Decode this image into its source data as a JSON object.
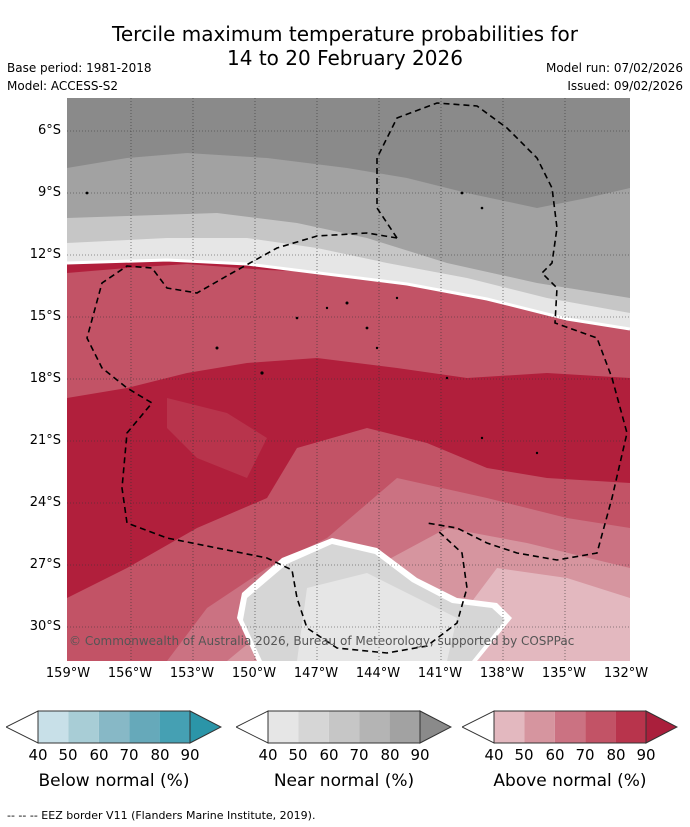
{
  "title_line1": "Tercile maximum temperature probabilities for",
  "title_line2": "14 to 20 February 2026",
  "base_period": "Base period: 1981-2018",
  "model": "Model: ACCESS-S2",
  "model_run": "Model run: 07/02/2026",
  "issued": "Issued: 09/02/2026",
  "y_ticks": [
    "6°S",
    "9°S",
    "12°S",
    "15°S",
    "18°S",
    "21°S",
    "24°S",
    "27°S",
    "30°S"
  ],
  "x_ticks": [
    "159°W",
    "156°W",
    "153°W",
    "150°W",
    "147°W",
    "144°W",
    "141°W",
    "138°W",
    "135°W",
    "132°W"
  ],
  "copyright": "© Commonwealth of Australia 2026, Bureau of Meteorology, supported by COSPPac",
  "colorbars": [
    {
      "label": "Below normal (%)",
      "ticks": [
        "40",
        "50",
        "60",
        "70",
        "80",
        "90"
      ],
      "colors": [
        "#c8e0e8",
        "#a8cdd6",
        "#87b8c6",
        "#66a9ba",
        "#45a0b3",
        "#2b95a8"
      ]
    },
    {
      "label": "Near normal (%)",
      "ticks": [
        "40",
        "50",
        "60",
        "70",
        "80",
        "90"
      ],
      "colors": [
        "#e6e6e6",
        "#d6d6d6",
        "#c6c6c6",
        "#b4b4b4",
        "#a2a2a2",
        "#8a8a8a"
      ]
    },
    {
      "label": "Above normal (%)",
      "ticks": [
        "40",
        "50",
        "60",
        "70",
        "80",
        "90"
      ],
      "colors": [
        "#e3b8bf",
        "#d6959f",
        "#cb7282",
        "#c25366",
        "#b8344c",
        "#aa1f3c"
      ]
    }
  ],
  "footer": "--  --  -- EEZ border V11 (Flanders Marine Institute, 2019)."
}
